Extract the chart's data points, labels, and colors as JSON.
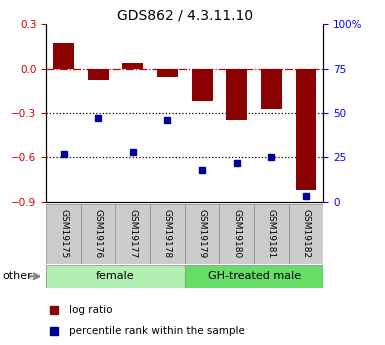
{
  "title": "GDS862 / 4.3.11.10",
  "samples": [
    "GSM19175",
    "GSM19176",
    "GSM19177",
    "GSM19178",
    "GSM19179",
    "GSM19180",
    "GSM19181",
    "GSM19182"
  ],
  "log_ratio": [
    0.17,
    -0.08,
    0.04,
    -0.06,
    -0.22,
    -0.35,
    -0.27,
    -0.82
  ],
  "percentile_rank_pct": [
    27,
    47,
    28,
    46,
    18,
    22,
    25,
    3
  ],
  "groups": [
    {
      "label": "female",
      "start": 0,
      "end": 4,
      "color": "#b2f0b2"
    },
    {
      "label": "GH-treated male",
      "start": 4,
      "end": 8,
      "color": "#66dd66"
    }
  ],
  "left_ylim": [
    -0.9,
    0.3
  ],
  "right_ylim": [
    0,
    100
  ],
  "left_yticks": [
    -0.9,
    -0.6,
    -0.3,
    0.0,
    0.3
  ],
  "right_yticks": [
    0,
    25,
    50,
    75,
    100
  ],
  "right_yticklabels": [
    "0",
    "25",
    "50",
    "75",
    "100%"
  ],
  "bar_color": "#8B0000",
  "dot_color": "#000099",
  "hline_color": "#cc0000",
  "dotted_line_color": "#000000",
  "legend_lr_label": "log ratio",
  "legend_pr_label": "percentile rank within the sample",
  "other_label": "other",
  "sample_box_color": "#cccccc",
  "title_fontsize": 10,
  "tick_fontsize": 7.5
}
